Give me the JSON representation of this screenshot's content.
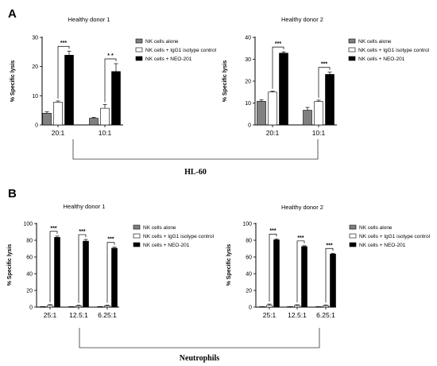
{
  "panels": [
    {
      "letter": "A"
    },
    {
      "letter": "B"
    }
  ],
  "groups": [
    {
      "label": "HL-60"
    },
    {
      "label": "Neutrophils"
    }
  ],
  "chart_data": [
    {
      "type": "bar",
      "title": "Healthy donor 1",
      "ylabel": "% Specific lysis",
      "ylim": [
        0,
        30
      ],
      "yticks": [
        0,
        10,
        20,
        30
      ],
      "categories": [
        "20:1",
        "10:1"
      ],
      "series": [
        {
          "name": "NK cells alone",
          "values": [
            4.0,
            2.3
          ],
          "errors": [
            0.5,
            0.3
          ],
          "color": "#808080"
        },
        {
          "name": "NK cells + IgG1 isotype control",
          "values": [
            7.8,
            5.7
          ],
          "errors": [
            0.4,
            1.3
          ],
          "color": "#ffffff"
        },
        {
          "name": "NK cells + NEO-201",
          "values": [
            23.9,
            18.3
          ],
          "errors": [
            1.4,
            2.7
          ],
          "color": "#000000"
        }
      ],
      "significance": [
        "***",
        "* *"
      ]
    },
    {
      "type": "bar",
      "title": "Healthy donor 2",
      "ylabel": "% Specific lysis",
      "ylim": [
        0,
        40
      ],
      "yticks": [
        0,
        10,
        20,
        30,
        40
      ],
      "categories": [
        "20:1",
        "10:1"
      ],
      "series": [
        {
          "name": "NK cells alone",
          "values": [
            10.8,
            6.7
          ],
          "errors": [
            0.7,
            1.3
          ],
          "color": "#808080"
        },
        {
          "name": "NK cells + IgG1 isotype control",
          "values": [
            15.0,
            10.7
          ],
          "errors": [
            0.4,
            0.6
          ],
          "color": "#ffffff"
        },
        {
          "name": "NK cells + NEO-201",
          "values": [
            32.8,
            23.1
          ],
          "errors": [
            0.6,
            1.0
          ],
          "color": "#000000"
        }
      ],
      "significance": [
        "***",
        "***"
      ]
    },
    {
      "type": "bar",
      "title": "Healthy donor 1",
      "ylabel": "% Specific lysis",
      "ylim": [
        0,
        100
      ],
      "yticks": [
        0,
        20,
        40,
        60,
        80,
        100
      ],
      "categories": [
        "25:1",
        "12.5:1",
        "6.25:1"
      ],
      "series": [
        {
          "name": "NK cells alone",
          "values": [
            0.3,
            0.3,
            0.4
          ],
          "errors": [
            0.3,
            0.3,
            0.3
          ],
          "color": "#808080"
        },
        {
          "name": "NK cells + IgG1 isotype control",
          "values": [
            2.0,
            1.5,
            1.6
          ],
          "errors": [
            1.0,
            0.8,
            0.8
          ],
          "color": "#ffffff"
        },
        {
          "name": "NK cells + NEO-201",
          "values": [
            83.5,
            79.0,
            70.5
          ],
          "errors": [
            1.5,
            2.0,
            1.2
          ],
          "color": "#000000"
        }
      ],
      "significance": [
        "***",
        "***",
        "***"
      ]
    },
    {
      "type": "bar",
      "title": "Healthy donor 2",
      "ylabel": "% Specific lysis",
      "ylim": [
        0,
        100
      ],
      "yticks": [
        0,
        20,
        40,
        60,
        80,
        100
      ],
      "categories": [
        "25:1",
        "12.5:1",
        "6.25:1"
      ],
      "series": [
        {
          "name": "NK cells alone",
          "values": [
            0.2,
            0.2,
            0.2
          ],
          "errors": [
            0.2,
            0.2,
            0.2
          ],
          "color": "#808080"
        },
        {
          "name": "NK cells + IgG1 isotype control",
          "values": [
            2.2,
            2.0,
            1.8
          ],
          "errors": [
            1.5,
            0.8,
            0.8
          ],
          "color": "#ffffff"
        },
        {
          "name": "NK cells + NEO-201",
          "values": [
            80.5,
            72.5,
            63.5
          ],
          "errors": [
            1.2,
            1.0,
            1.0
          ],
          "color": "#000000"
        }
      ],
      "significance": [
        "***",
        "***",
        "***"
      ]
    }
  ]
}
